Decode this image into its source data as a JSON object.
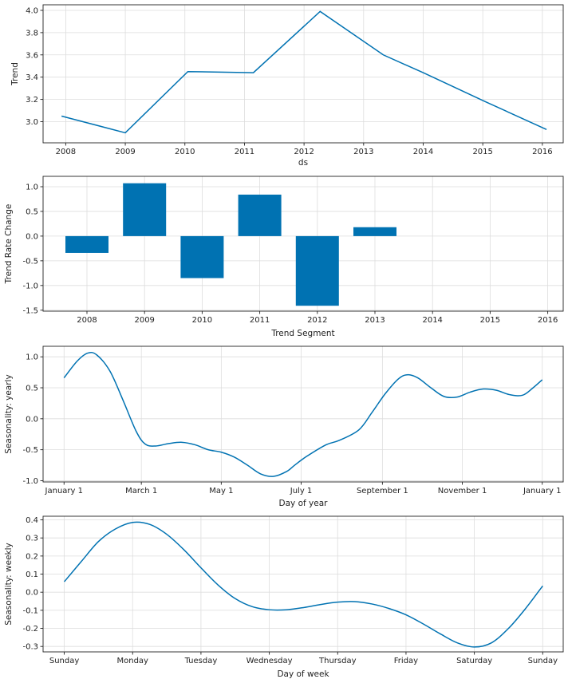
{
  "figure": {
    "background": "#ffffff",
    "line_color": "#0072B2",
    "bar_color": "#0072B2"
  },
  "chart_data": [
    {
      "type": "line",
      "xlabel": "ds",
      "ylabel": "Trend",
      "x_ticks": [
        "2008",
        "2009",
        "2010",
        "2011",
        "2012",
        "2013",
        "2014",
        "2015",
        "2016"
      ],
      "y_ticks": [
        "3.0",
        "3.2",
        "3.4",
        "3.6",
        "3.8",
        "4.0"
      ],
      "xlim": [
        2007.62,
        2016.35
      ],
      "ylim": [
        2.81,
        4.05
      ],
      "grid": true,
      "series": [
        {
          "x": [
            2007.93,
            2009.0,
            2010.05,
            2011.15,
            2012.27,
            2013.33,
            2014.0,
            2015.0,
            2016.07
          ],
          "y": [
            3.05,
            2.9,
            3.45,
            3.44,
            3.99,
            3.6,
            3.44,
            3.19,
            2.93
          ]
        }
      ]
    },
    {
      "type": "bar",
      "xlabel": "Trend Segment",
      "ylabel": "Trend Rate Change",
      "categories": [
        "2008",
        "2009",
        "2010",
        "2011",
        "2012",
        "2013",
        "2014",
        "2015",
        "2016"
      ],
      "values": [
        -0.34,
        1.07,
        -0.85,
        0.84,
        -1.41,
        0.18,
        null,
        null,
        null
      ],
      "y_ticks": [
        "1.0",
        "0.5",
        "0.0",
        "-0.5",
        "-1.0",
        "-1.5"
      ],
      "ylim": [
        -1.52,
        1.21
      ],
      "grid": true
    },
    {
      "type": "line",
      "xlabel": "Day of year",
      "ylabel": "Seasonality: yearly",
      "x_ticks": [
        "January 1",
        "March 1",
        "May 1",
        "July 1",
        "September 1",
        "November 1",
        "January 1"
      ],
      "x_tick_days": [
        0,
        59,
        120,
        181,
        243,
        304,
        365
      ],
      "y_ticks": [
        "1.0",
        "0.5",
        "0.0",
        "-0.5",
        "-1.0"
      ],
      "xlim": [
        -16,
        381
      ],
      "ylim": [
        -1.02,
        1.17
      ],
      "grid": true,
      "series": [
        {
          "x": [
            0,
            10,
            18,
            25,
            35,
            45,
            55,
            62,
            70,
            80,
            90,
            100,
            110,
            120,
            130,
            140,
            150,
            160,
            170,
            176,
            185,
            200,
            210,
            225,
            235,
            245,
            255,
            262,
            270,
            280,
            290,
            300,
            310,
            320,
            330,
            340,
            350,
            358,
            365
          ],
          "y": [
            0.66,
            0.93,
            1.06,
            1.03,
            0.77,
            0.3,
            -0.2,
            -0.41,
            -0.44,
            -0.4,
            -0.38,
            -0.42,
            -0.5,
            -0.54,
            -0.62,
            -0.75,
            -0.89,
            -0.93,
            -0.85,
            -0.75,
            -0.61,
            -0.42,
            -0.35,
            -0.18,
            0.1,
            0.4,
            0.64,
            0.71,
            0.66,
            0.5,
            0.36,
            0.35,
            0.43,
            0.48,
            0.46,
            0.39,
            0.38,
            0.5,
            0.63
          ]
        }
      ]
    },
    {
      "type": "line",
      "xlabel": "Day of week",
      "ylabel": "Seasonality: weekly",
      "x_ticks": [
        "Sunday",
        "Monday",
        "Tuesday",
        "Wednesday",
        "Thursday",
        "Friday",
        "Saturday",
        "Sunday"
      ],
      "y_ticks": [
        "0.4",
        "0.3",
        "0.2",
        "0.1",
        "0.0",
        "-0.1",
        "-0.2",
        "-0.3"
      ],
      "xlim": [
        -0.31,
        7.3
      ],
      "ylim": [
        -0.33,
        0.42
      ],
      "grid": true,
      "series": [
        {
          "x": [
            0,
            0.25,
            0.5,
            0.75,
            1.0,
            1.25,
            1.5,
            1.75,
            2.0,
            2.25,
            2.5,
            2.75,
            3.0,
            3.25,
            3.5,
            3.75,
            4.0,
            4.25,
            4.5,
            4.75,
            5.0,
            5.25,
            5.5,
            5.75,
            6.0,
            6.25,
            6.5,
            6.75,
            7.0
          ],
          "y": [
            0.058,
            0.17,
            0.28,
            0.35,
            0.386,
            0.375,
            0.32,
            0.235,
            0.135,
            0.04,
            -0.035,
            -0.08,
            -0.097,
            -0.097,
            -0.085,
            -0.068,
            -0.055,
            -0.052,
            -0.065,
            -0.09,
            -0.125,
            -0.175,
            -0.23,
            -0.28,
            -0.303,
            -0.28,
            -0.2,
            -0.09,
            0.035
          ]
        }
      ]
    }
  ]
}
